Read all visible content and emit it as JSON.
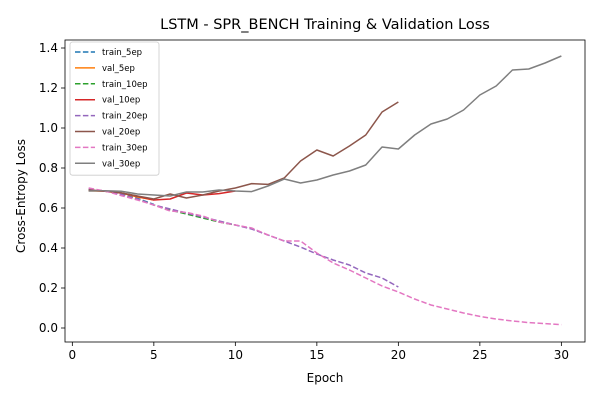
{
  "chart_data": {
    "type": "line",
    "title": "LSTM - SPR_BENCH Training & Validation Loss",
    "xlabel": "Epoch",
    "ylabel": "Cross-Entropy Loss",
    "xlim": [
      -0.45,
      31.45
    ],
    "ylim": [
      -0.07,
      1.44
    ],
    "xticks": [
      0,
      5,
      10,
      15,
      20,
      25,
      30
    ],
    "yticks": [
      0.0,
      0.2,
      0.4,
      0.6,
      0.8,
      1.0,
      1.2,
      1.4
    ],
    "grid": false,
    "legend_position": "top-left",
    "series": [
      {
        "name": "train_5ep",
        "color": "#1f77b4",
        "dash": true,
        "x": [
          1,
          2,
          3,
          4,
          5
        ],
        "y": [
          0.69,
          0.685,
          0.672,
          0.648,
          0.618
        ]
      },
      {
        "name": "val_5ep",
        "color": "#ff7f0e",
        "dash": false,
        "x": [
          1,
          2,
          3,
          4,
          5
        ],
        "y": [
          0.686,
          0.684,
          0.675,
          0.655,
          0.64
        ]
      },
      {
        "name": "train_10ep",
        "color": "#2ca02c",
        "dash": true,
        "x": [
          1,
          2,
          3,
          4,
          5,
          6,
          7,
          8,
          9,
          10
        ],
        "y": [
          0.692,
          0.685,
          0.67,
          0.645,
          0.615,
          0.59,
          0.57,
          0.55,
          0.53,
          0.515
        ]
      },
      {
        "name": "val_10ep",
        "color": "#d62728",
        "dash": false,
        "x": [
          1,
          2,
          3,
          4,
          5,
          6,
          7,
          8,
          9,
          10
        ],
        "y": [
          0.688,
          0.684,
          0.675,
          0.658,
          0.64,
          0.645,
          0.675,
          0.665,
          0.672,
          0.685
        ]
      },
      {
        "name": "train_20ep",
        "color": "#9467bd",
        "dash": true,
        "x": [
          1,
          2,
          3,
          4,
          5,
          6,
          7,
          8,
          9,
          10,
          11,
          12,
          13,
          14,
          15,
          16,
          17,
          18,
          19,
          20
        ],
        "y": [
          0.695,
          0.685,
          0.668,
          0.645,
          0.615,
          0.595,
          0.575,
          0.555,
          0.535,
          0.515,
          0.495,
          0.465,
          0.435,
          0.405,
          0.37,
          0.34,
          0.315,
          0.275,
          0.25,
          0.205
        ]
      },
      {
        "name": "val_20ep",
        "color": "#8c564b",
        "dash": false,
        "x": [
          1,
          2,
          3,
          4,
          5,
          6,
          7,
          8,
          9,
          10,
          11,
          12,
          13,
          14,
          15,
          16,
          17,
          18,
          19,
          20
        ],
        "y": [
          0.69,
          0.685,
          0.676,
          0.66,
          0.645,
          0.67,
          0.65,
          0.665,
          0.685,
          0.7,
          0.722,
          0.718,
          0.75,
          0.835,
          0.89,
          0.86,
          0.91,
          0.965,
          1.08,
          1.13
        ]
      },
      {
        "name": "train_30ep",
        "color": "#e377c2",
        "dash": true,
        "x": [
          1,
          2,
          3,
          4,
          5,
          6,
          7,
          8,
          9,
          10,
          11,
          12,
          13,
          14,
          15,
          16,
          17,
          18,
          19,
          20,
          21,
          22,
          23,
          24,
          25,
          26,
          27,
          28,
          29,
          30
        ],
        "y": [
          0.7,
          0.685,
          0.662,
          0.64,
          0.615,
          0.585,
          0.578,
          0.56,
          0.53,
          0.515,
          0.5,
          0.465,
          0.435,
          0.435,
          0.375,
          0.325,
          0.29,
          0.25,
          0.21,
          0.18,
          0.145,
          0.115,
          0.095,
          0.075,
          0.058,
          0.045,
          0.035,
          0.027,
          0.022,
          0.017
        ]
      },
      {
        "name": "val_30ep",
        "color": "#7f7f7f",
        "dash": false,
        "x": [
          1,
          2,
          3,
          4,
          5,
          6,
          7,
          8,
          9,
          10,
          11,
          12,
          13,
          14,
          15,
          16,
          17,
          18,
          19,
          20,
          21,
          22,
          23,
          24,
          25,
          26,
          27,
          28,
          29,
          30
        ],
        "y": [
          0.685,
          0.686,
          0.684,
          0.67,
          0.665,
          0.66,
          0.68,
          0.68,
          0.69,
          0.685,
          0.682,
          0.71,
          0.745,
          0.725,
          0.74,
          0.765,
          0.785,
          0.815,
          0.905,
          0.895,
          0.965,
          1.02,
          1.045,
          1.09,
          1.165,
          1.21,
          1.29,
          1.295,
          1.325,
          1.36
        ]
      }
    ]
  }
}
